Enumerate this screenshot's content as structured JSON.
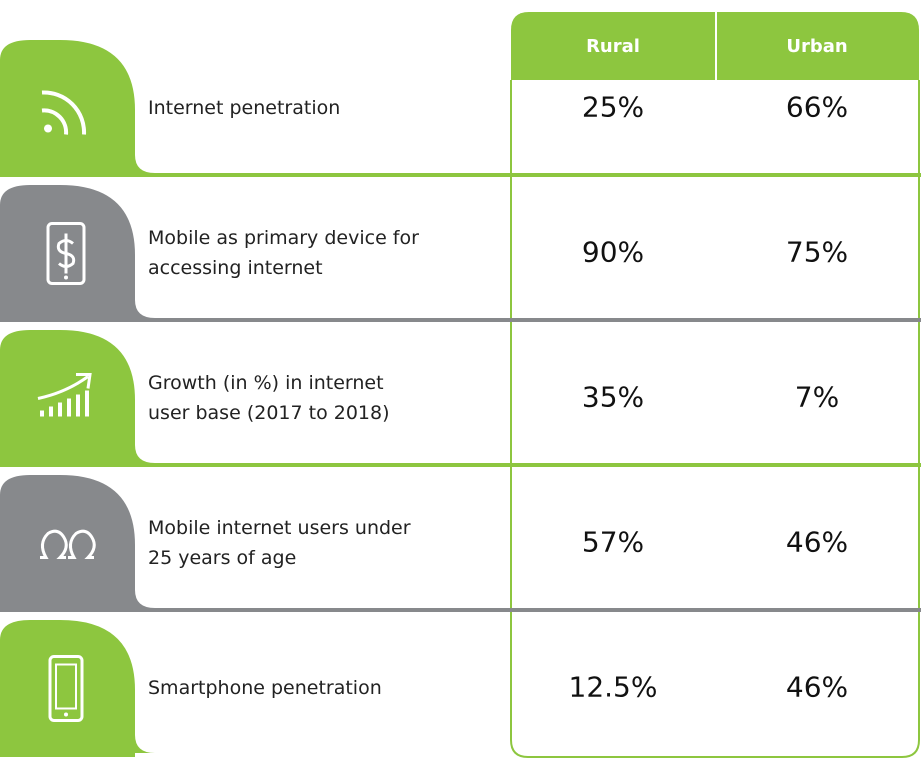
{
  "header": {
    "columns": [
      "Rural",
      "Urban"
    ]
  },
  "rows": [
    {
      "label": [
        "Internet penetration"
      ],
      "values": [
        "25%",
        "66%"
      ]
    },
    {
      "label": [
        "Mobile as primary device for",
        "accessing internet"
      ],
      "values": [
        "90%",
        "75%"
      ]
    },
    {
      "label": [
        "Growth (in %) in internet",
        "user base (2017 to 2018)"
      ],
      "values": [
        "35%",
        "7%"
      ]
    },
    {
      "label": [
        "Mobile internet users under",
        "25 years of age"
      ],
      "values": [
        "57%",
        "46%"
      ]
    },
    {
      "label": [
        "Smartphone penetration"
      ],
      "values": [
        "12.5%",
        "46%"
      ]
    }
  ]
}
